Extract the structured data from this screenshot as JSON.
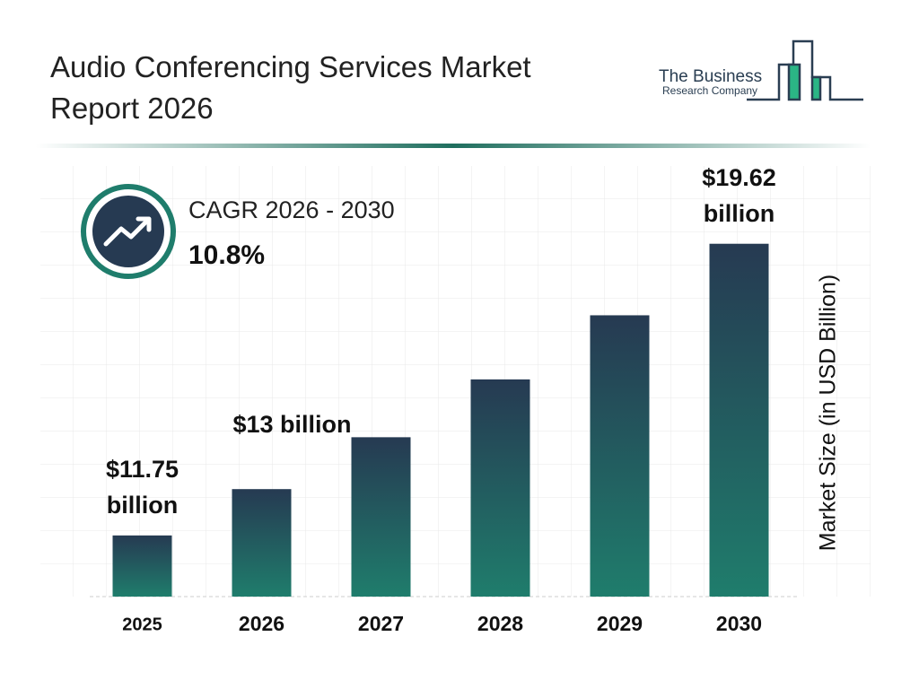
{
  "logo": {
    "name": "The Business",
    "subname": "Research Company"
  },
  "chart_data": {
    "type": "bar",
    "title": "Audio Conferencing Services Market Report 2026",
    "cagr_label": "CAGR 2026 - 2030",
    "cagr_value": "10.8%",
    "y_label": "Market Size (in USD Billion)",
    "categories": [
      "2025",
      "2026",
      "2027",
      "2028",
      "2029",
      "2030"
    ],
    "values": [
      11.75,
      13,
      14.4,
      15.96,
      17.69,
      19.62
    ],
    "value_labels": [
      "$11.75 billion",
      "$13 billion",
      null,
      null,
      null,
      "$19.62 billion"
    ],
    "ylim": [
      10.1,
      21.84
    ],
    "grid": false
  }
}
